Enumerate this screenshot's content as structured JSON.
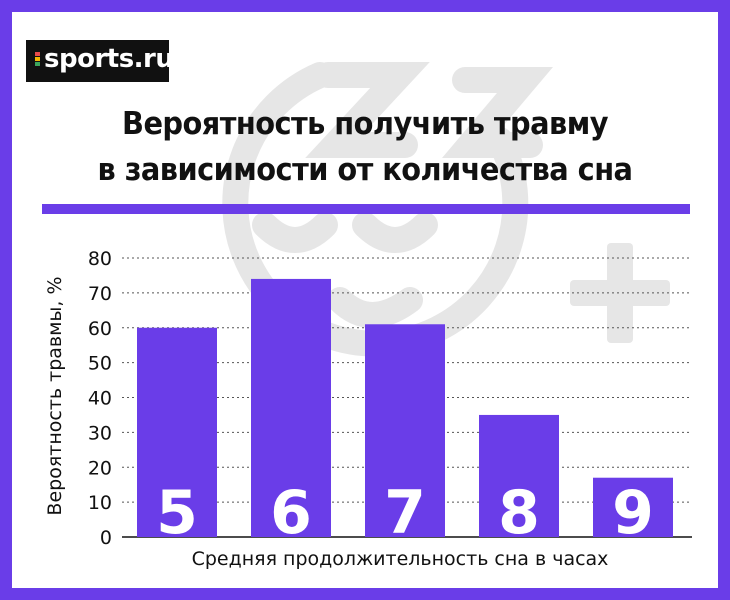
{
  "brand": {
    "logo_text": "sports.ru",
    "dot_colors": [
      "#e84b4b",
      "#f5b800",
      "#3ba55c"
    ]
  },
  "colors": {
    "accent": "#6a3de8",
    "watermark": "#e6e6e6"
  },
  "chart_data": {
    "type": "bar",
    "title_line1": "Вероятность получить травму",
    "title_line2": "в зависимости от количества сна",
    "xlabel": "Средняя продолжительность сна в часах",
    "ylabel": "Вероятность травмы, %",
    "categories": [
      "5",
      "6",
      "7",
      "8",
      "9"
    ],
    "values": [
      60,
      74,
      61,
      35,
      17
    ],
    "ylim": [
      0,
      80
    ],
    "yticks": [
      0,
      10,
      20,
      30,
      40,
      50,
      60,
      70,
      80
    ],
    "grid": true,
    "bar_color": "#6a3de8"
  }
}
